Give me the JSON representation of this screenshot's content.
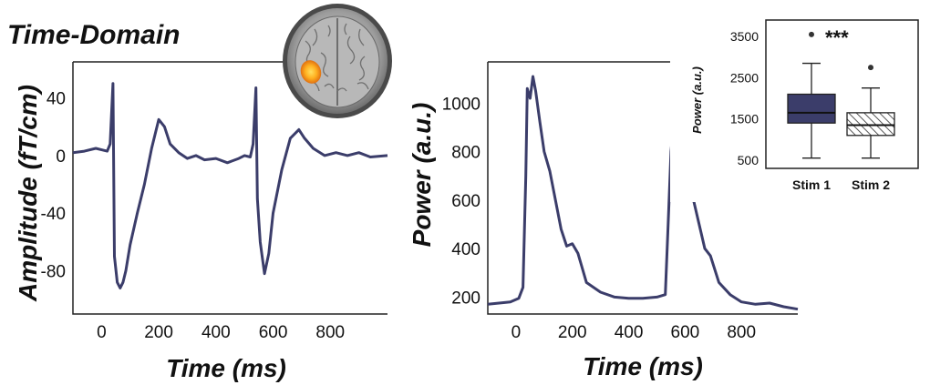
{
  "figure_title": "Time-Domain",
  "colors": {
    "trace": "#3b3d6a",
    "box_fill": "#3b3d6a",
    "axis": "#222222",
    "blob_outer": "#f2a13a",
    "blob_inner": "#ffd040"
  },
  "icons": {
    "brain": "brain-mri-axial-icon"
  },
  "chart_data": [
    {
      "type": "line",
      "title": "",
      "xlabel": "Time (ms)",
      "ylabel": "Amplitude (fT/cm)",
      "xlim": [
        -100,
        1000
      ],
      "ylim": [
        -110,
        65
      ],
      "xticks": [
        0,
        200,
        400,
        600,
        800
      ],
      "yticks": [
        40,
        0,
        -40,
        -80
      ],
      "series": [
        {
          "x": [
            -100,
            -60,
            -20,
            0,
            20,
            30,
            40,
            45,
            55,
            65,
            75,
            85,
            100,
            125,
            150,
            175,
            200,
            220,
            240,
            270,
            300,
            330,
            360,
            400,
            440,
            480,
            500,
            520,
            530,
            540,
            545,
            555,
            570,
            585,
            600,
            630,
            660,
            690,
            710,
            740,
            780,
            820,
            860,
            900,
            940,
            1000
          ],
          "values": [
            2,
            3,
            5,
            4,
            3,
            8,
            50,
            -70,
            -88,
            -92,
            -88,
            -80,
            -62,
            -40,
            -20,
            5,
            25,
            20,
            8,
            2,
            -2,
            0,
            -3,
            -2,
            -5,
            -2,
            0,
            -1,
            8,
            47,
            -30,
            -60,
            -82,
            -68,
            -40,
            -10,
            12,
            18,
            12,
            5,
            0,
            2,
            0,
            2,
            -1,
            0
          ]
        }
      ]
    },
    {
      "type": "line",
      "title": "",
      "xlabel": "Time (ms)",
      "ylabel": "Power (a.u.)",
      "xlim": [
        -100,
        1000
      ],
      "ylim": [
        130,
        1170
      ],
      "xticks": [
        0,
        200,
        400,
        600,
        800
      ],
      "yticks": [
        200,
        400,
        600,
        800,
        1000
      ],
      "series": [
        {
          "x": [
            -100,
            -60,
            -20,
            10,
            25,
            35,
            40,
            50,
            60,
            70,
            85,
            100,
            120,
            140,
            160,
            180,
            200,
            220,
            250,
            300,
            350,
            400,
            450,
            500,
            530,
            540,
            550,
            560,
            570,
            580,
            600,
            630,
            650,
            670,
            690,
            720,
            760,
            800,
            850,
            900,
            950,
            1000
          ],
          "values": [
            170,
            175,
            180,
            195,
            240,
            700,
            1060,
            1020,
            1110,
            1050,
            920,
            800,
            720,
            600,
            480,
            410,
            420,
            380,
            260,
            220,
            200,
            195,
            195,
            200,
            210,
            500,
            800,
            920,
            960,
            880,
            720,
            600,
            500,
            400,
            370,
            260,
            210,
            180,
            170,
            175,
            160,
            150
          ]
        }
      ]
    },
    {
      "type": "box",
      "title": "",
      "ylabel": "Power (a.u.)",
      "ylim": [
        300,
        3900
      ],
      "yticks": [
        500,
        1500,
        2500,
        3500
      ],
      "categories": [
        "Stim 1",
        "Stim 2"
      ],
      "boxes": [
        {
          "min": 550,
          "q1": 1400,
          "median": 1650,
          "q3": 2100,
          "max": 2850,
          "outliers": [
            3550
          ],
          "pattern": "solid"
        },
        {
          "min": 550,
          "q1": 1100,
          "median": 1350,
          "q3": 1650,
          "max": 2250,
          "outliers": [
            2750
          ],
          "pattern": "hatched"
        }
      ],
      "annotation": "***"
    }
  ]
}
